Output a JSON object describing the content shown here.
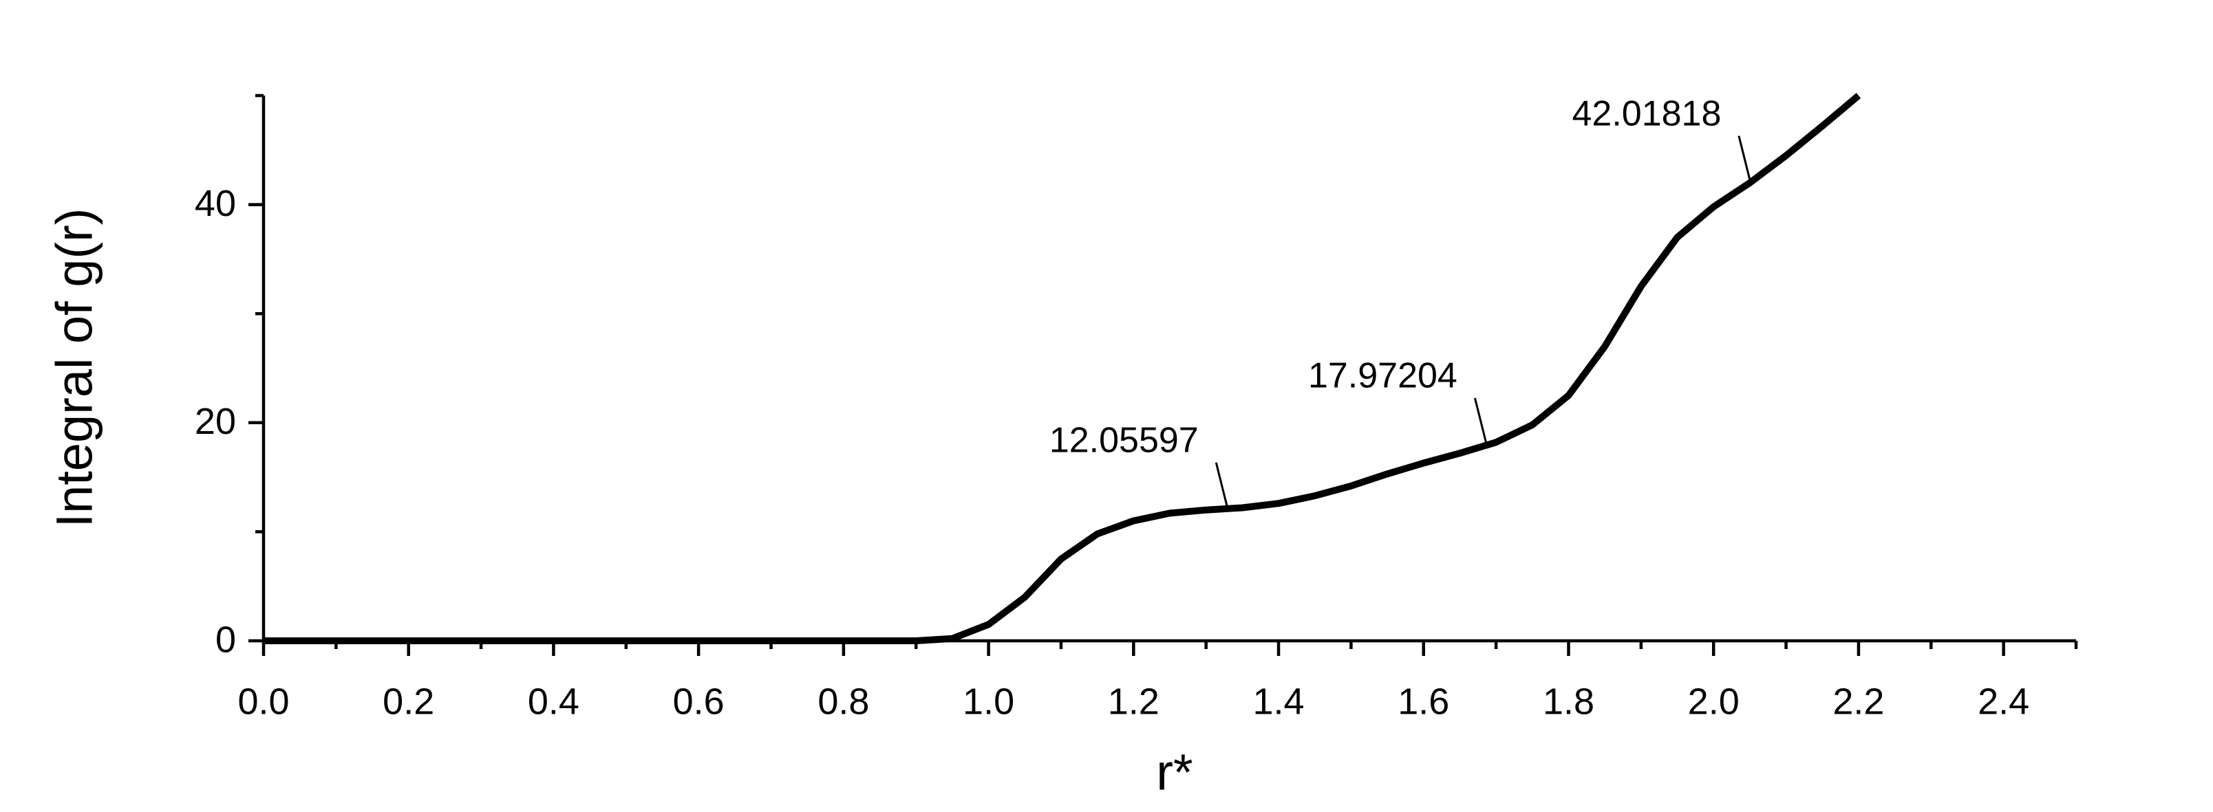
{
  "chart_data": {
    "type": "line",
    "xlabel": "r*",
    "ylabel": "Integral of g(r)",
    "xlim": [
      0,
      2.5
    ],
    "ylim": [
      0,
      50
    ],
    "xticks": [
      {
        "value": 0,
        "label": "0.0"
      },
      0.2,
      0.4,
      0.6,
      0.8,
      {
        "value": 1,
        "label": "1.0"
      },
      1.2,
      1.4,
      1.6,
      1.8,
      {
        "value": 2,
        "label": "2.0"
      },
      2.2,
      2.4
    ],
    "yticks": [
      0,
      20,
      40
    ],
    "xminorticks": [
      0.1,
      0.3,
      0.5,
      0.7,
      0.9,
      1.1,
      1.3,
      1.5,
      1.7,
      1.9,
      2.1,
      2.3,
      2.5
    ],
    "yminorticks": [
      10,
      30,
      50
    ],
    "series": [
      {
        "color": "#000000",
        "x": [
          0,
          0.5,
          0.9,
          0.95,
          1.0,
          1.05,
          1.1,
          1.15,
          1.2,
          1.25,
          1.3,
          1.35,
          1.4,
          1.45,
          1.5,
          1.55,
          1.6,
          1.65,
          1.7,
          1.75,
          1.8,
          1.85,
          1.9,
          1.95,
          2.0,
          2.05,
          2.1,
          2.15,
          2.2
        ],
        "values": [
          0,
          0,
          0,
          0.2,
          1.5,
          4,
          7.5,
          9.8,
          11,
          11.7,
          12,
          12.2,
          12.6,
          13.3,
          14.2,
          15.3,
          16.3,
          17.2,
          18.2,
          19.8,
          22.5,
          27,
          32.5,
          37,
          39.8,
          42,
          44.5,
          47.2,
          50
        ]
      }
    ],
    "annotations": [
      {
        "x": 1.33,
        "y": 12.05597,
        "label": "12.05597"
      },
      {
        "x": 1.687,
        "y": 17.97204,
        "label": "17.97204"
      },
      {
        "x": 2.051,
        "y": 42.01818,
        "label": "42.01818"
      }
    ]
  }
}
